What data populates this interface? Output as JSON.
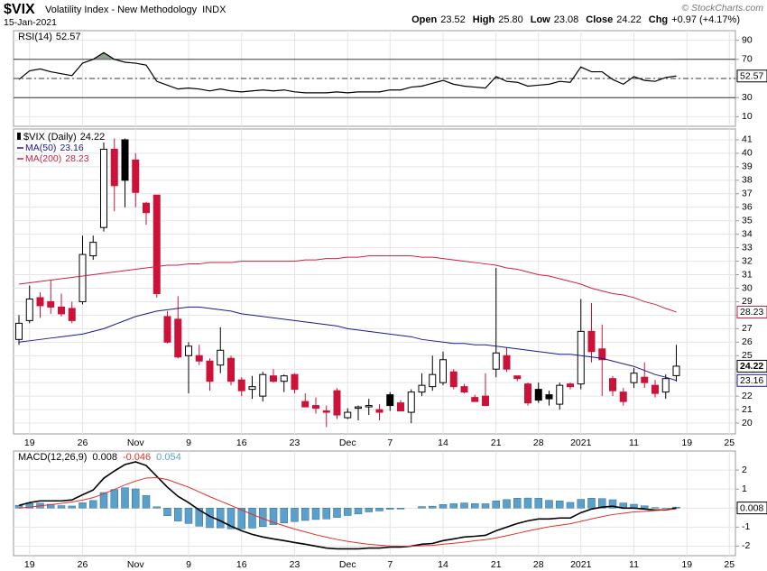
{
  "header": {
    "symbol": "$VIX",
    "name": "Volatility Index - New Methodology",
    "exchange": "INDX",
    "date": "15-Jan-2021",
    "credit": "© StockCharts.com",
    "quote": [
      {
        "label": "Open",
        "value": "23.52"
      },
      {
        "label": "High",
        "value": "25.80"
      },
      {
        "label": "Low",
        "value": "23.08"
      },
      {
        "label": "Close",
        "value": "24.22"
      },
      {
        "label": "Chg",
        "value": "+0.97 (+4.17%)"
      }
    ]
  },
  "chart_data": [
    {
      "type": "line",
      "ylim": [
        0,
        100
      ],
      "yticks": [
        10,
        30,
        50,
        70,
        90
      ],
      "reference_lines": [
        {
          "value": 70,
          "style": "solid"
        },
        {
          "value": 50,
          "style": "dashed"
        },
        {
          "value": 30,
          "style": "solid"
        }
      ],
      "overbought_fill": "#8fa08f",
      "series": [
        {
          "name": "RSI(14)",
          "color": "#000000",
          "values": [
            49,
            58,
            60,
            57,
            55,
            53,
            66,
            70,
            77,
            70,
            67,
            66,
            64,
            47,
            43,
            39,
            40,
            39,
            37,
            39,
            37,
            36,
            37,
            38,
            37,
            38,
            36,
            35,
            35,
            35,
            36,
            35,
            36,
            36,
            36,
            38,
            38,
            41,
            42,
            45,
            48,
            44,
            42,
            41,
            40,
            52,
            47,
            46,
            42,
            43,
            44,
            47,
            46,
            62,
            57,
            57,
            49,
            44,
            52,
            48,
            47,
            51,
            52.57
          ]
        }
      ]
    },
    {
      "type": "candlestick",
      "title": "$VIX (Daily)",
      "ylim": [
        19.2,
        41.8
      ],
      "yticks": [
        20,
        21,
        22,
        23,
        24,
        25,
        26,
        27,
        28,
        29,
        30,
        31,
        32,
        33,
        34,
        35,
        36,
        37,
        38,
        39,
        40,
        41
      ],
      "grid": true,
      "categories": [
        null,
        "19",
        null,
        null,
        null,
        null,
        "26",
        null,
        null,
        null,
        null,
        "Nov",
        null,
        null,
        null,
        null,
        "9",
        null,
        null,
        null,
        null,
        "16",
        null,
        null,
        null,
        null,
        "23",
        null,
        null,
        null,
        null,
        "Dec",
        null,
        null,
        null,
        "7",
        null,
        null,
        null,
        null,
        "14",
        null,
        null,
        null,
        null,
        "21",
        null,
        null,
        null,
        "28",
        null,
        null,
        null,
        "2021",
        null,
        null,
        null,
        null,
        "11",
        null,
        null,
        null,
        null,
        "19",
        null,
        null,
        null,
        "25"
      ],
      "colors": {
        "up": "#ffffff",
        "down": "#cc1238",
        "down_from_up": "#000000",
        "outline": "#000000"
      },
      "ohlc": {
        "open": [
          26.2,
          27.6,
          29.3,
          29.0,
          28.6,
          28.5,
          29.0,
          32.4,
          34.5,
          40.3,
          41.0,
          39.5,
          36.3,
          36.9,
          27.9,
          27.7,
          25.0,
          25.0,
          24.6,
          24.3,
          24.8,
          23.2,
          22.5,
          22.0,
          23.5,
          23.1,
          23.6,
          21.6,
          21.3,
          20.9,
          22.4,
          20.4,
          21.1,
          21.2,
          21.0,
          22.1,
          21.5,
          20.8,
          22.3,
          22.7,
          23.0,
          23.8,
          22.7,
          21.9,
          22.0,
          24.0,
          25.0,
          23.5,
          22.9,
          22.5,
          22.1,
          21.4,
          22.9,
          22.9,
          26.8,
          25.5,
          23.3,
          22.3,
          23.0,
          23.4,
          22.8,
          22.3,
          23.52,
          null,
          null,
          null,
          null,
          null
        ],
        "high": [
          28.0,
          30.2,
          29.7,
          30.6,
          29.6,
          29.0,
          33.9,
          33.9,
          40.8,
          41.1,
          41.1,
          40.0,
          36.4,
          36.9,
          28.3,
          29.4,
          26.0,
          25.8,
          24.8,
          27.1,
          25.0,
          23.4,
          23.5,
          23.8,
          24.0,
          23.6,
          23.7,
          22.2,
          21.9,
          21.3,
          22.6,
          21.1,
          21.3,
          21.8,
          21.4,
          22.3,
          21.7,
          22.5,
          23.7,
          25.0,
          25.3,
          24.0,
          22.9,
          22.1,
          23.7,
          31.5,
          25.6,
          23.5,
          23.0,
          23.0,
          22.4,
          23.0,
          23.0,
          29.2,
          28.9,
          27.3,
          23.5,
          22.6,
          24.1,
          24.5,
          23.2,
          23.6,
          25.8,
          null,
          null,
          null,
          null,
          null
        ],
        "low": [
          25.8,
          27.4,
          27.8,
          28.1,
          27.9,
          27.4,
          28.8,
          32.1,
          34.2,
          35.7,
          36.0,
          36.0,
          34.7,
          29.3,
          25.9,
          24.8,
          22.2,
          24.3,
          22.4,
          23.7,
          22.8,
          22.0,
          21.8,
          21.6,
          23.0,
          22.3,
          22.2,
          21.2,
          20.7,
          19.7,
          20.3,
          20.3,
          20.2,
          20.6,
          20.2,
          20.9,
          20.9,
          20.0,
          22.0,
          22.4,
          22.8,
          22.5,
          22.2,
          21.6,
          21.3,
          23.4,
          23.8,
          23.1,
          21.3,
          21.5,
          21.3,
          21.0,
          22.5,
          22.5,
          24.5,
          22.0,
          22.0,
          21.3,
          22.6,
          22.6,
          21.9,
          21.8,
          23.08,
          null,
          null,
          null,
          null,
          null
        ],
        "close": [
          27.4,
          29.2,
          28.7,
          28.6,
          28.1,
          27.6,
          32.5,
          33.4,
          40.3,
          37.6,
          38.0,
          37.1,
          35.6,
          29.6,
          26.0,
          24.9,
          25.7,
          24.6,
          23.1,
          25.4,
          23.1,
          22.4,
          22.7,
          23.6,
          23.1,
          23.5,
          22.5,
          21.2,
          21.1,
          20.8,
          20.6,
          20.8,
          21.2,
          21.3,
          20.8,
          21.3,
          20.9,
          22.3,
          22.8,
          23.6,
          24.7,
          22.7,
          22.3,
          21.6,
          21.3,
          25.2,
          24.0,
          23.3,
          21.5,
          21.7,
          21.8,
          22.8,
          22.7,
          26.8,
          25.3,
          24.7,
          22.4,
          21.6,
          23.7,
          23.0,
          22.2,
          23.3,
          24.22,
          null,
          null,
          null,
          null,
          null
        ]
      },
      "series": [
        {
          "name": "MA(50)",
          "color": "#1a1a8c",
          "values": [
            26.0,
            26.1,
            26.2,
            26.3,
            26.4,
            26.5,
            26.6,
            26.8,
            27.0,
            27.3,
            27.6,
            27.9,
            28.1,
            28.3,
            28.4,
            28.5,
            28.6,
            28.6,
            28.5,
            28.4,
            28.3,
            28.1,
            28.0,
            27.9,
            27.8,
            27.7,
            27.6,
            27.5,
            27.4,
            27.3,
            27.2,
            27.0,
            26.9,
            26.8,
            26.7,
            26.6,
            26.5,
            26.4,
            26.2,
            26.1,
            26.0,
            25.9,
            25.9,
            25.8,
            25.8,
            25.7,
            25.6,
            25.5,
            25.4,
            25.3,
            25.2,
            25.1,
            25.1,
            25.0,
            24.9,
            24.8,
            24.6,
            24.4,
            24.2,
            23.9,
            23.6,
            23.4,
            23.16,
            null,
            null,
            null,
            null,
            null
          ]
        },
        {
          "name": "MA(200)",
          "color": "#cc2244",
          "values": [
            30.3,
            30.4,
            30.5,
            30.6,
            30.7,
            30.8,
            30.9,
            31.0,
            31.1,
            31.2,
            31.3,
            31.4,
            31.5,
            31.6,
            31.7,
            31.7,
            31.8,
            31.8,
            31.9,
            31.9,
            31.9,
            32.0,
            32.0,
            32.0,
            32.0,
            32.0,
            32.0,
            32.1,
            32.1,
            32.2,
            32.2,
            32.3,
            32.3,
            32.4,
            32.4,
            32.4,
            32.4,
            32.4,
            32.3,
            32.3,
            32.2,
            32.1,
            32.0,
            31.9,
            31.8,
            31.7,
            31.5,
            31.4,
            31.2,
            31.0,
            30.9,
            30.7,
            30.5,
            30.3,
            30.0,
            29.8,
            29.6,
            29.5,
            29.3,
            29.0,
            28.8,
            28.5,
            28.23,
            null,
            null,
            null,
            null,
            null
          ]
        }
      ]
    },
    {
      "type": "macd",
      "title": "MACD(12,26,9)",
      "ylim": [
        -2.5,
        3.0
      ],
      "yticks": [
        -2,
        -1,
        0,
        1,
        2
      ],
      "categories": [
        null,
        "19",
        null,
        null,
        null,
        null,
        "26",
        null,
        null,
        null,
        null,
        "Nov",
        null,
        null,
        null,
        null,
        "9",
        null,
        null,
        null,
        null,
        "16",
        null,
        null,
        null,
        null,
        "23",
        null,
        null,
        null,
        null,
        "Dec",
        null,
        null,
        null,
        "7",
        null,
        null,
        null,
        null,
        "14",
        null,
        null,
        null,
        null,
        "21",
        null,
        null,
        null,
        "28",
        null,
        null,
        null,
        "2021",
        null,
        null,
        null,
        null,
        "11",
        null,
        null,
        null,
        null,
        "19",
        null,
        null,
        null,
        "25"
      ],
      "series": [
        {
          "kind": "line",
          "color": "#000000",
          "values": [
            0.14,
            0.29,
            0.38,
            0.38,
            0.38,
            0.43,
            0.7,
            0.95,
            1.57,
            1.95,
            2.29,
            2.43,
            2.24,
            1.67,
            1.1,
            0.62,
            0.29,
            -0.1,
            -0.43,
            -0.67,
            -0.95,
            -1.19,
            -1.38,
            -1.52,
            -1.62,
            -1.71,
            -1.81,
            -1.9,
            -2.0,
            -2.1,
            -2.14,
            -2.14,
            -2.14,
            -2.1,
            -2.1,
            -2.05,
            -2.05,
            -2.0,
            -1.9,
            -1.86,
            -1.71,
            -1.62,
            -1.52,
            -1.48,
            -1.43,
            -1.19,
            -1.0,
            -0.81,
            -0.67,
            -0.57,
            -0.57,
            -0.52,
            -0.52,
            -0.24,
            -0.05,
            0.05,
            0.1,
            0,
            0,
            -0.05,
            -0.1,
            -0.1,
            0.008,
            null,
            null,
            null,
            null,
            null
          ]
        },
        {
          "kind": "line",
          "color": "#e0302a",
          "values": [
            0,
            0.05,
            0.12,
            0.18,
            0.25,
            0.32,
            0.42,
            0.55,
            0.75,
            0.98,
            1.22,
            1.42,
            1.58,
            1.6,
            1.5,
            1.3,
            1.1,
            0.85,
            0.6,
            0.37,
            0.14,
            -0.1,
            -0.33,
            -0.55,
            -0.75,
            -0.93,
            -1.1,
            -1.25,
            -1.4,
            -1.53,
            -1.65,
            -1.75,
            -1.83,
            -1.9,
            -1.95,
            -1.99,
            -2.0,
            -2.0,
            -1.98,
            -1.96,
            -1.9,
            -1.85,
            -1.79,
            -1.72,
            -1.66,
            -1.57,
            -1.45,
            -1.33,
            -1.2,
            -1.09,
            -0.98,
            -0.9,
            -0.82,
            -0.7,
            -0.57,
            -0.45,
            -0.34,
            -0.27,
            -0.2,
            -0.17,
            -0.13,
            -0.09,
            -0.046,
            null,
            null,
            null,
            null,
            null
          ]
        },
        {
          "kind": "bar",
          "color": "#5b9fcb",
          "values": [
            0.14,
            0.24,
            0.26,
            0.2,
            0.13,
            0.11,
            0.28,
            0.4,
            0.82,
            0.97,
            1.07,
            1.01,
            0.66,
            0.07,
            -0.4,
            -0.68,
            -0.81,
            -0.95,
            -1.03,
            -1.04,
            -1.09,
            -1.09,
            -1.05,
            -0.97,
            -0.87,
            -0.78,
            -0.71,
            -0.65,
            -0.6,
            -0.57,
            -0.49,
            -0.39,
            -0.31,
            -0.2,
            -0.15,
            -0.06,
            -0.05,
            0,
            0.08,
            0.1,
            0.19,
            0.23,
            0.27,
            0.24,
            0.23,
            0.38,
            0.45,
            0.52,
            0.53,
            0.52,
            0.41,
            0.38,
            0.3,
            0.46,
            0.52,
            0.5,
            0.44,
            0.27,
            0.2,
            0.12,
            0.03,
            -0.01,
            0.054,
            null,
            null,
            null,
            null,
            null
          ]
        }
      ]
    }
  ]
}
